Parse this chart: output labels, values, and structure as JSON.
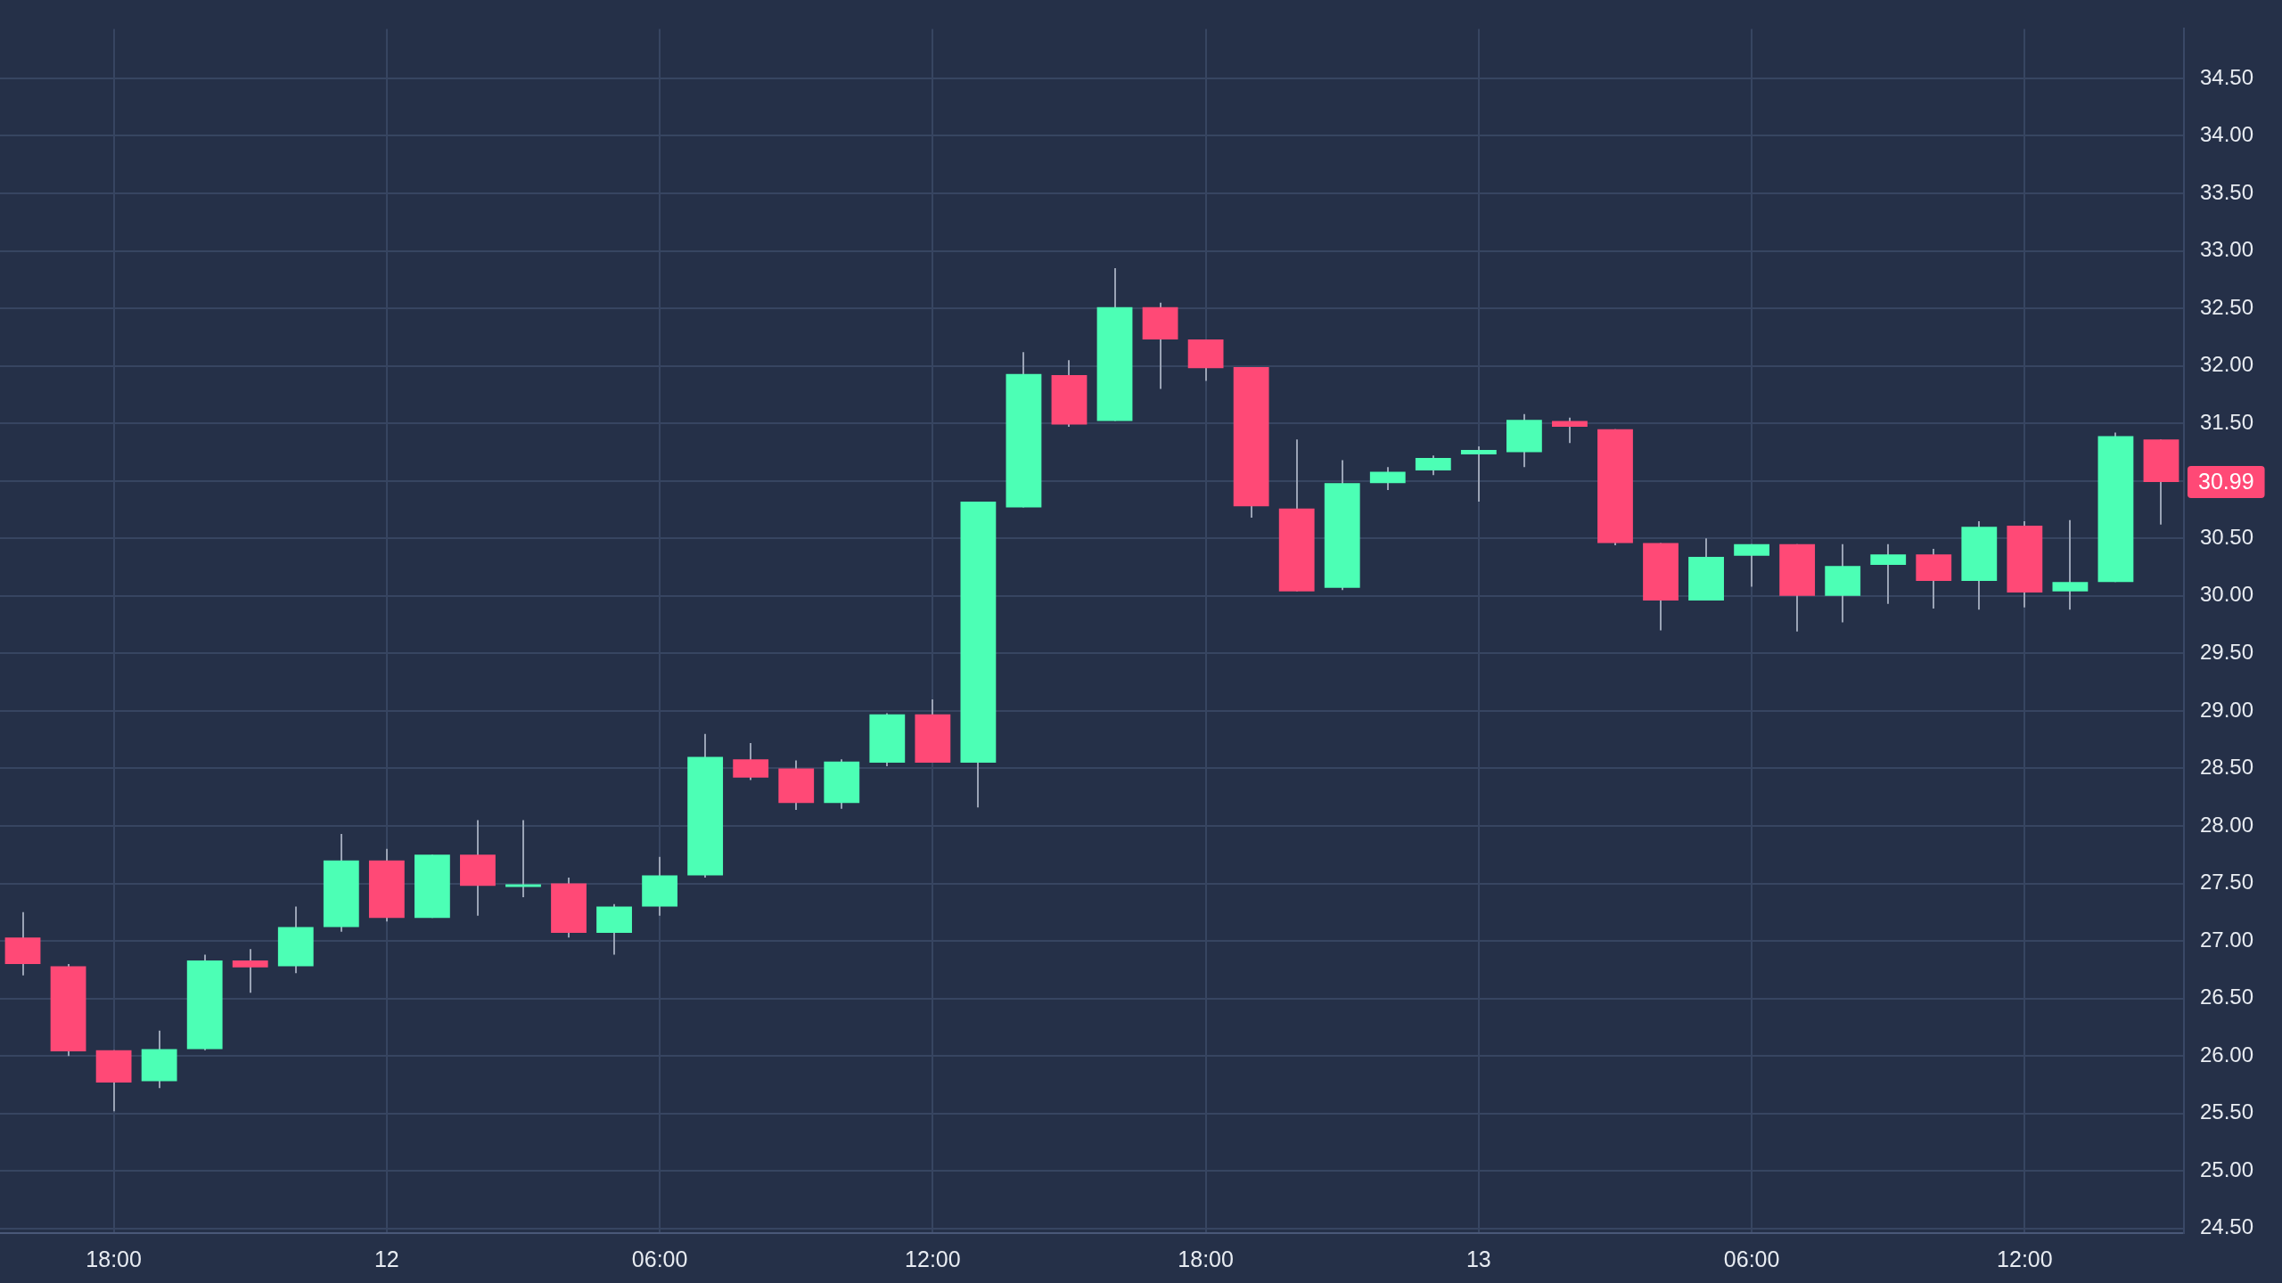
{
  "chart_data": {
    "type": "candlestick",
    "categories": [
      null,
      null,
      "18:00",
      null,
      null,
      null,
      null,
      null,
      "12",
      null,
      null,
      null,
      null,
      null,
      "06:00",
      null,
      null,
      null,
      null,
      null,
      "12:00",
      null,
      null,
      null,
      null,
      null,
      "18:00",
      null,
      null,
      null,
      null,
      null,
      "13",
      null,
      null,
      null,
      null,
      null,
      "06:00",
      null,
      null,
      null,
      null,
      null,
      "12:00",
      null,
      null,
      null
    ],
    "ohlc": [
      [
        27.03,
        27.25,
        26.7,
        26.8
      ],
      [
        26.78,
        26.8,
        26.0,
        26.04
      ],
      [
        26.05,
        26.05,
        25.52,
        25.77
      ],
      [
        25.78,
        26.22,
        25.72,
        26.06
      ],
      [
        26.06,
        26.88,
        26.05,
        26.83
      ],
      [
        26.83,
        26.93,
        26.55,
        26.77
      ],
      [
        26.78,
        27.3,
        26.72,
        27.12
      ],
      [
        27.12,
        27.93,
        27.08,
        27.7
      ],
      [
        27.7,
        27.8,
        27.17,
        27.2
      ],
      [
        27.2,
        27.75,
        27.2,
        27.75
      ],
      [
        27.75,
        28.05,
        27.22,
        27.48
      ],
      [
        27.47,
        28.05,
        27.38,
        27.48
      ],
      [
        27.5,
        27.55,
        27.03,
        27.07
      ],
      [
        27.07,
        27.32,
        26.88,
        27.3
      ],
      [
        27.3,
        27.73,
        27.22,
        27.57
      ],
      [
        27.57,
        28.8,
        27.55,
        28.6
      ],
      [
        28.58,
        28.72,
        28.4,
        28.42
      ],
      [
        28.5,
        28.57,
        28.14,
        28.2
      ],
      [
        28.2,
        28.58,
        28.15,
        28.56
      ],
      [
        28.55,
        28.98,
        28.52,
        28.97
      ],
      [
        28.97,
        29.1,
        28.55,
        28.55
      ],
      [
        28.55,
        30.82,
        28.16,
        30.82
      ],
      [
        30.77,
        32.12,
        30.77,
        31.93
      ],
      [
        31.92,
        32.05,
        31.47,
        31.49
      ],
      [
        31.52,
        32.85,
        31.52,
        32.51
      ],
      [
        32.51,
        32.55,
        31.8,
        32.23
      ],
      [
        32.23,
        32.23,
        31.87,
        31.98
      ],
      [
        31.99,
        31.99,
        30.68,
        30.78
      ],
      [
        30.76,
        31.36,
        30.04,
        30.04
      ],
      [
        30.07,
        31.18,
        30.05,
        30.98
      ],
      [
        30.98,
        31.12,
        30.92,
        31.08
      ],
      [
        31.09,
        31.22,
        31.05,
        31.2
      ],
      [
        31.23,
        31.3,
        30.82,
        31.27
      ],
      [
        31.25,
        31.58,
        31.12,
        31.53
      ],
      [
        31.52,
        31.55,
        31.33,
        31.47
      ],
      [
        31.45,
        31.45,
        30.44,
        30.46
      ],
      [
        30.46,
        30.46,
        29.7,
        29.96
      ],
      [
        29.96,
        30.5,
        29.96,
        30.34
      ],
      [
        30.35,
        30.45,
        30.08,
        30.45
      ],
      [
        30.45,
        30.45,
        29.69,
        30.0
      ],
      [
        30.0,
        30.45,
        29.77,
        30.26
      ],
      [
        30.27,
        30.45,
        29.93,
        30.36
      ],
      [
        30.36,
        30.41,
        29.89,
        30.13
      ],
      [
        30.13,
        30.65,
        29.88,
        30.6
      ],
      [
        30.61,
        30.65,
        29.9,
        30.03
      ],
      [
        30.04,
        30.66,
        29.88,
        30.12
      ],
      [
        30.12,
        31.42,
        30.12,
        31.39
      ],
      [
        31.36,
        31.36,
        30.62,
        30.99
      ]
    ],
    "colors": [
      "#ff4976",
      "#ff4976",
      "#ff4976",
      "#4cffb5",
      "#4cffb5",
      "#ff4976",
      "#4cffb5",
      "#4cffb5",
      "#ff4976",
      "#4cffb5",
      "#ff4976",
      "#4cffb5",
      "#ff4976",
      "#4cffb5",
      "#4cffb5",
      "#4cffb5",
      "#ff4976",
      "#ff4976",
      "#4cffb5",
      "#4cffb5",
      "#ff4976",
      "#4cffb5",
      "#4cffb5",
      "#ff4976",
      "#4cffb5",
      "#ff4976",
      "#ff4976",
      "#ff4976",
      "#ff4976",
      "#4cffb5",
      "#4cffb5",
      "#4cffb5",
      "#4cffb5",
      "#4cffb5",
      "#ff4976",
      "#ff4976",
      "#ff4976",
      "#4cffb5",
      "#4cffb5",
      "#ff4976",
      "#4cffb5",
      "#4cffb5",
      "#ff4976",
      "#4cffb5",
      "#ff4976",
      "#4cffb5",
      "#4cffb5",
      "#ff4976"
    ],
    "ylim": [
      24.46,
      34.93
    ],
    "yticks": [
      {
        "value": 24.5,
        "label": "24.50"
      },
      {
        "value": 25,
        "label": "25.00"
      },
      {
        "value": 25.5,
        "label": "25.50"
      },
      {
        "value": 26,
        "label": "26.00"
      },
      {
        "value": 26.5,
        "label": "26.50"
      },
      {
        "value": 27,
        "label": "27.00"
      },
      {
        "value": 27.5,
        "label": "27.50"
      },
      {
        "value": 28,
        "label": "28.00"
      },
      {
        "value": 28.5,
        "label": "28.50"
      },
      {
        "value": 29,
        "label": "29.00"
      },
      {
        "value": 29.5,
        "label": "29.50"
      },
      {
        "value": 30,
        "label": "30.00"
      },
      {
        "value": 30.5,
        "label": "30.50"
      },
      {
        "value": 31,
        "label": null
      },
      {
        "value": 31.5,
        "label": "31.50"
      },
      {
        "value": 32,
        "label": "32.00"
      },
      {
        "value": 32.5,
        "label": "32.50"
      },
      {
        "value": 33,
        "label": "33.00"
      },
      {
        "value": 33.5,
        "label": "33.50"
      },
      {
        "value": 34,
        "label": "34.00"
      },
      {
        "value": 34.5,
        "label": "34.50"
      }
    ],
    "annotations": [
      "30.99"
    ],
    "grid": true
  }
}
